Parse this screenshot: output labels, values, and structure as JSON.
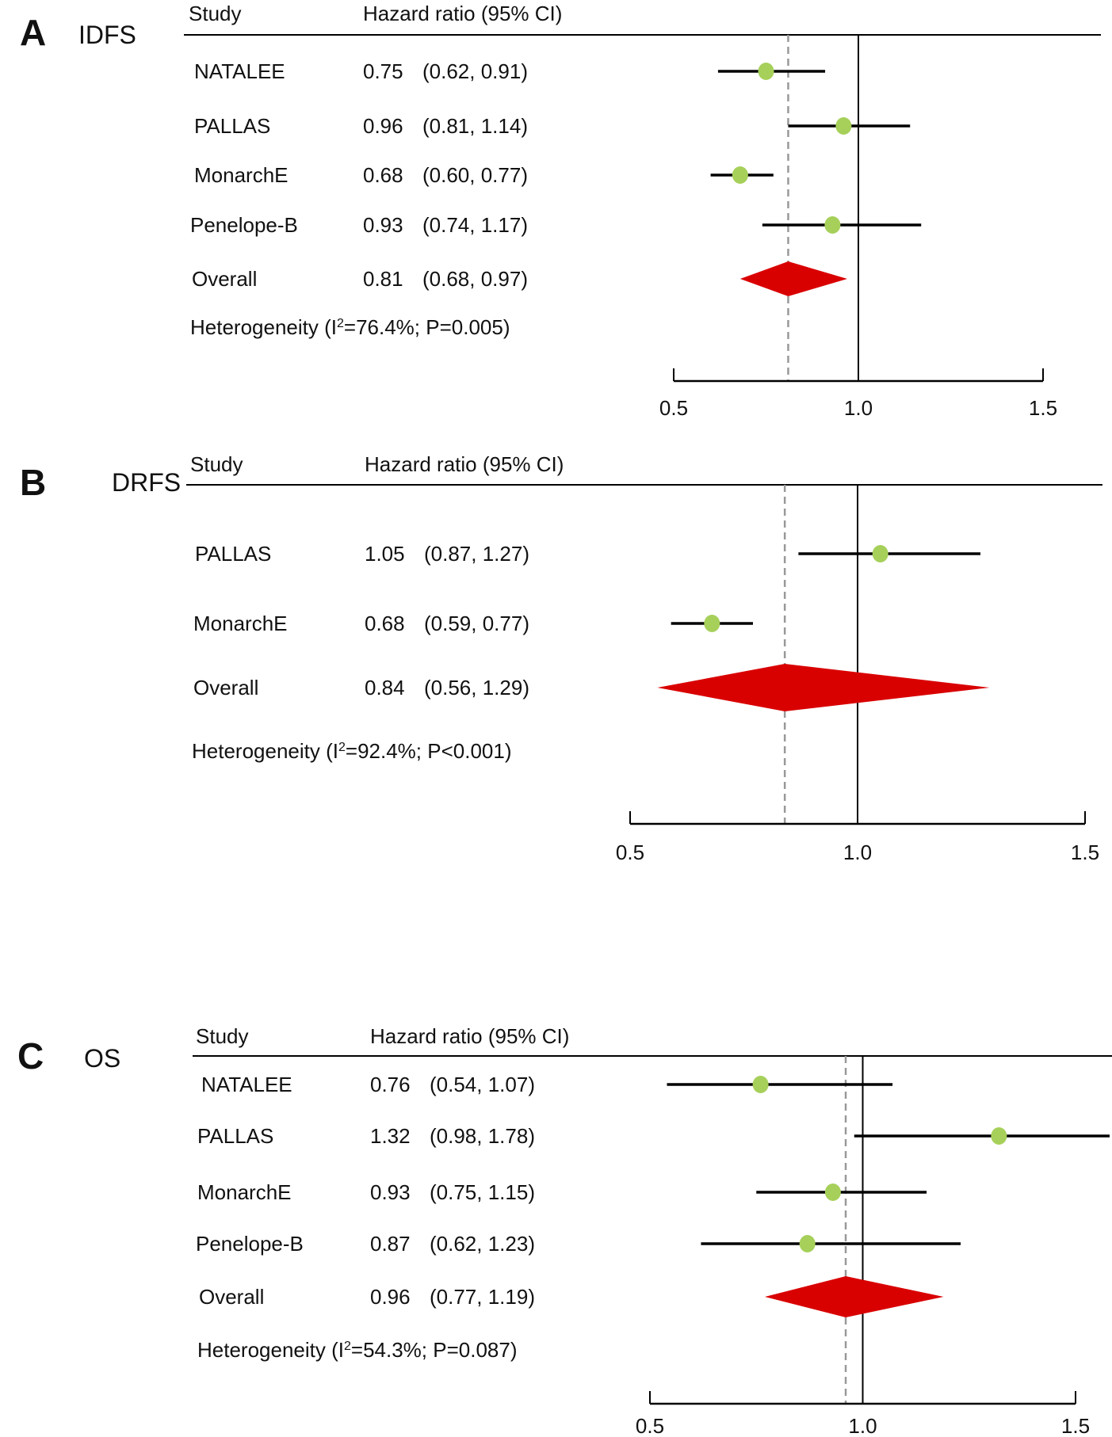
{
  "chart_data": [
    {
      "type": "forest",
      "panel_letter": "A",
      "title": "IDFS",
      "col_study": "Study",
      "col_hr": "Hazard ratio (95% CI)",
      "rows": [
        {
          "study": "NATALEE",
          "est_text": "0.75",
          "ci_text": "(0.62, 0.91)",
          "hr": 0.75,
          "lo": 0.62,
          "hi": 0.91
        },
        {
          "study": "PALLAS",
          "est_text": "0.96",
          "ci_text": "(0.81, 1.14)",
          "hr": 0.96,
          "lo": 0.81,
          "hi": 1.14
        },
        {
          "study": "MonarchE",
          "est_text": "0.68",
          "ci_text": "(0.60, 0.77)",
          "hr": 0.68,
          "lo": 0.6,
          "hi": 0.77
        },
        {
          "study": "Penelope-B",
          "est_text": "0.93",
          "ci_text": "(0.74, 1.17)",
          "hr": 0.93,
          "lo": 0.74,
          "hi": 1.17
        }
      ],
      "overall": {
        "study": "Overall",
        "est_text": "0.81",
        "ci_text": "(0.68, 0.97)",
        "hr": 0.81,
        "lo": 0.68,
        "hi": 0.97
      },
      "heterogeneity": {
        "prefix": "Heterogeneity (I",
        "sup": "2",
        "suffix": "=76.4%; P=0.005)"
      },
      "xticks": [
        "0.5",
        "1.0",
        "1.5"
      ],
      "xlim": [
        0.5,
        1.5
      ],
      "reference_line": 1.0
    },
    {
      "type": "forest",
      "panel_letter": "B",
      "title": "DRFS",
      "col_study": "Study",
      "col_hr": "Hazard ratio (95% CI)",
      "rows": [
        {
          "study": "PALLAS",
          "est_text": "1.05",
          "ci_text": "(0.87, 1.27)",
          "hr": 1.05,
          "lo": 0.87,
          "hi": 1.27
        },
        {
          "study": "MonarchE",
          "est_text": "0.68",
          "ci_text": "(0.59, 0.77)",
          "hr": 0.68,
          "lo": 0.59,
          "hi": 0.77
        }
      ],
      "overall": {
        "study": "Overall",
        "est_text": "0.84",
        "ci_text": "(0.56, 1.29)",
        "hr": 0.84,
        "lo": 0.56,
        "hi": 1.29
      },
      "heterogeneity": {
        "prefix": "Heterogeneity (I",
        "sup": "2",
        "suffix": "=92.4%; P<0.001)"
      },
      "xticks": [
        "0.5",
        "1.0",
        "1.5"
      ],
      "xlim": [
        0.5,
        1.5
      ],
      "reference_line": 1.0
    },
    {
      "type": "forest",
      "panel_letter": "C",
      "title": "OS",
      "col_study": "Study",
      "col_hr": "Hazard ratio (95% CI)",
      "rows": [
        {
          "study": "NATALEE",
          "est_text": "0.76",
          "ci_text": "(0.54, 1.07)",
          "hr": 0.76,
          "lo": 0.54,
          "hi": 1.07
        },
        {
          "study": "PALLAS",
          "est_text": "1.32",
          "ci_text": "(0.98, 1.78)",
          "hr": 1.32,
          "lo": 0.98,
          "hi": 1.78
        },
        {
          "study": "MonarchE",
          "est_text": "0.93",
          "ci_text": "(0.75, 1.15)",
          "hr": 0.93,
          "lo": 0.75,
          "hi": 1.15
        },
        {
          "study": "Penelope-B",
          "est_text": "0.87",
          "ci_text": "(0.62, 1.23)",
          "hr": 0.87,
          "lo": 0.62,
          "hi": 1.23
        }
      ],
      "overall": {
        "study": "Overall",
        "est_text": "0.96",
        "ci_text": "(0.77, 1.19)",
        "hr": 0.96,
        "lo": 0.77,
        "hi": 1.19
      },
      "heterogeneity": {
        "prefix": "Heterogeneity (I",
        "sup": "2",
        "suffix": "=54.3%; P=0.087)"
      },
      "xticks": [
        "0.5",
        "1.0",
        "1.5"
      ],
      "xlim": [
        0.5,
        1.5
      ],
      "reference_line": 1.0
    }
  ],
  "colors": {
    "point": "#a6d05a",
    "diamond": "#d90000",
    "line": "#000000",
    "dashed": "#999999"
  }
}
